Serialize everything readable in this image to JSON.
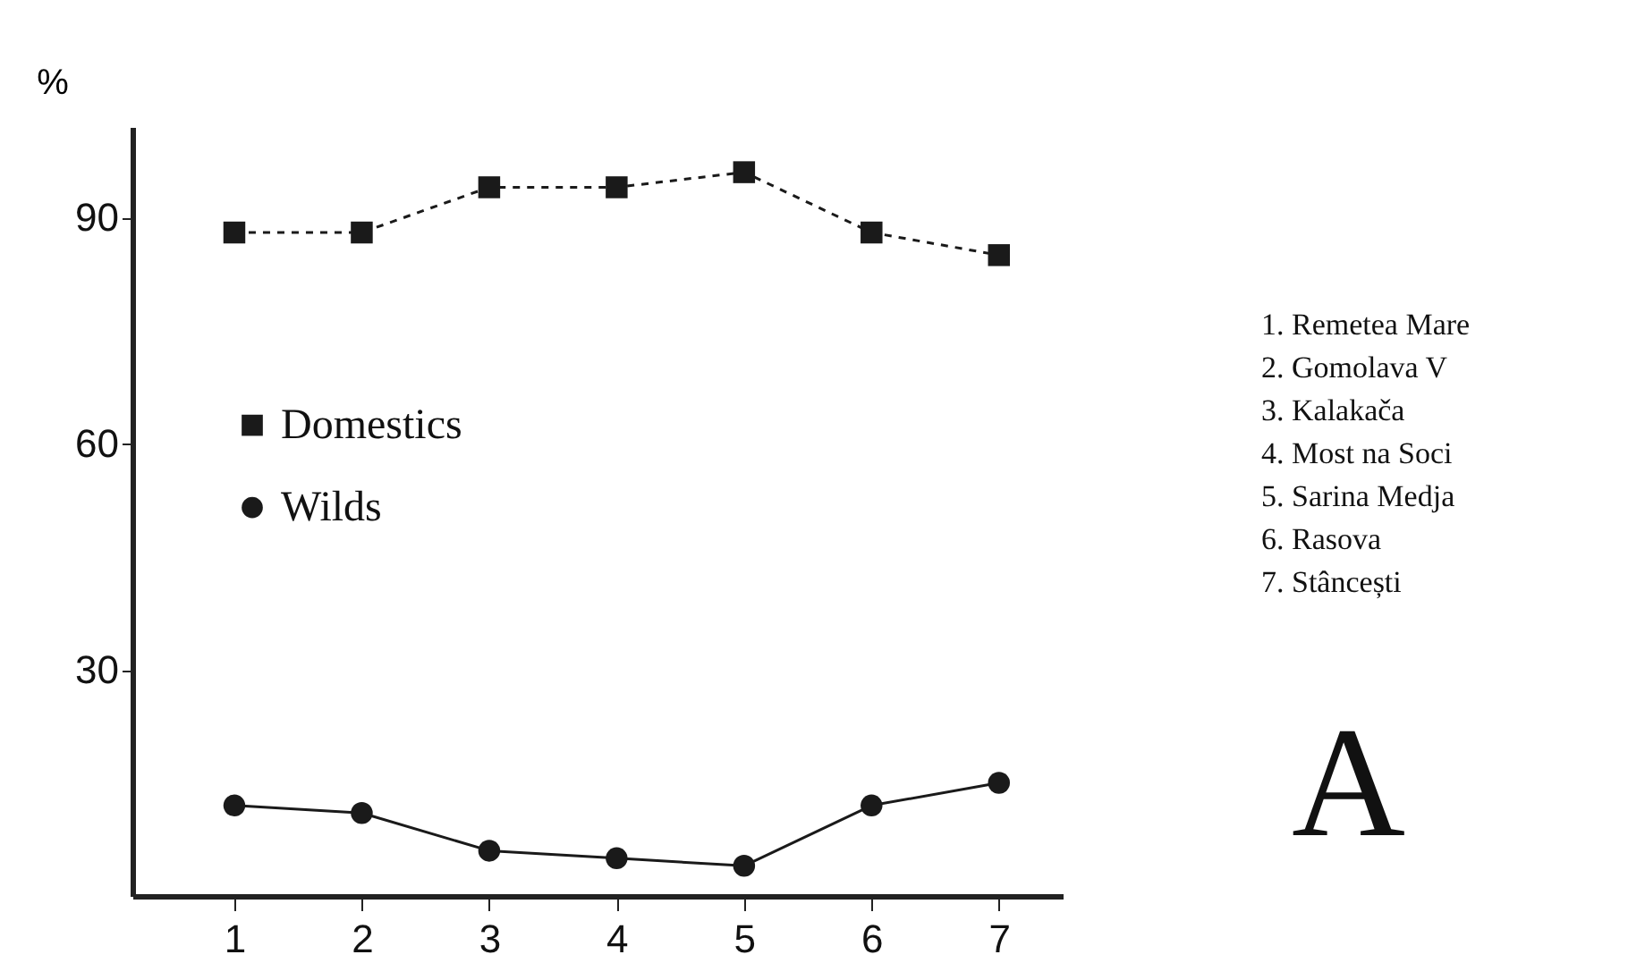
{
  "chart_data": {
    "type": "line",
    "ylabel": "%",
    "categories": [
      "1",
      "2",
      "3",
      "4",
      "5",
      "6",
      "7"
    ],
    "series": [
      {
        "name": "Domestics",
        "color": "#1a1a1a",
        "marker": "square",
        "line_style": "dashed",
        "values": [
          88,
          88,
          94,
          94,
          96,
          88,
          85
        ]
      },
      {
        "name": "Wilds",
        "color": "#1a1a1a",
        "marker": "circle",
        "line_style": "solid",
        "values": [
          12,
          11,
          6,
          5,
          4,
          12,
          15
        ]
      }
    ],
    "ylim": [
      0,
      102
    ],
    "yticks": [
      30,
      60,
      90
    ],
    "grid": false,
    "legend": "left",
    "annotations": [
      "1. Remetea Mare",
      "2. Gomolava V",
      "3. Kalakača",
      "4. Most na Soci",
      "5. Sarina Medja",
      "6. Rasova",
      "7. Stâncești",
      "A"
    ]
  }
}
